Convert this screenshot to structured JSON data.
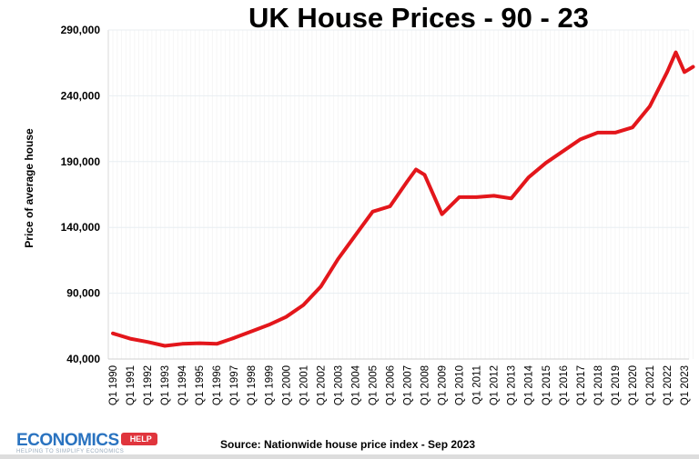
{
  "chart_data": {
    "type": "line",
    "title": "UK House Prices - 90 - 23",
    "xlabel": "",
    "ylabel": "Price of average house",
    "ylim": [
      40000,
      290000
    ],
    "yticks": [
      "40,000",
      "90,000",
      "140,000",
      "190,000",
      "240,000",
      "290,000"
    ],
    "ytick_values": [
      40000,
      90000,
      140000,
      190000,
      240000,
      290000
    ],
    "xticks": [
      "Q1 1990",
      "Q1 1991",
      "Q1 1992",
      "Q1 1993",
      "Q1 1994",
      "Q1 1995",
      "Q1 1996",
      "Q1 1997",
      "Q1 1998",
      "Q1 1999",
      "Q1 2000",
      "Q1 2001",
      "Q1 2002",
      "Q1 2003",
      "Q1 2004",
      "Q1 2005",
      "Q1 2006",
      "Q1 2007",
      "Q1 2008",
      "Q1 2009",
      "Q1 2010",
      "Q1 2011",
      "Q1 2012",
      "Q1 2013",
      "Q1 2014",
      "Q1 2015",
      "Q1 2016",
      "Q1 2017",
      "Q1 2018",
      "Q1 2019",
      "Q1 2020",
      "Q1 2021",
      "Q1 2022",
      "Q1 2023"
    ],
    "grid": true,
    "line_color": "#e3161b",
    "series": [
      {
        "points": [
          [
            "Q1 1990",
            59500
          ],
          [
            "Q1 1991",
            55500
          ],
          [
            "Q1 1992",
            53000
          ],
          [
            "Q1 1993",
            50000
          ],
          [
            "Q1 1994",
            51500
          ],
          [
            "Q1 1995",
            52000
          ],
          [
            "Q1 1996",
            51500
          ],
          [
            "Q1 1997",
            56000
          ],
          [
            "Q1 1998",
            61000
          ],
          [
            "Q1 1999",
            66000
          ],
          [
            "Q1 2000",
            72000
          ],
          [
            "Q1 2001",
            81000
          ],
          [
            "Q1 2002",
            95000
          ],
          [
            "Q1 2003",
            116000
          ],
          [
            "Q1 2004",
            134000
          ],
          [
            "Q1 2005",
            152000
          ],
          [
            "Q1 2006",
            156000
          ],
          [
            "Q1 2007",
            175000
          ],
          [
            "Q3 2007",
            184000
          ],
          [
            "Q1 2008",
            180000
          ],
          [
            "Q1 2009",
            150000
          ],
          [
            "Q1 2010",
            163000
          ],
          [
            "Q1 2011",
            163000
          ],
          [
            "Q1 2012",
            164000
          ],
          [
            "Q1 2013",
            162000
          ],
          [
            "Q1 2014",
            178000
          ],
          [
            "Q1 2015",
            189000
          ],
          [
            "Q1 2016",
            198000
          ],
          [
            "Q1 2017",
            207000
          ],
          [
            "Q1 2018",
            212000
          ],
          [
            "Q1 2019",
            212000
          ],
          [
            "Q1 2020",
            216000
          ],
          [
            "Q1 2021",
            232000
          ],
          [
            "Q1 2022",
            258000
          ],
          [
            "Q3 2022",
            273000
          ],
          [
            "Q1 2023",
            258000
          ],
          [
            "Q3 2023",
            262000
          ]
        ]
      }
    ]
  },
  "logo": {
    "main": "ECONOMICS",
    "tag": "HELP",
    "sub": "HELPING TO SIMPLIFY ECONOMICS"
  },
  "source": "Source: Nationwide house price index - Sep 2023"
}
